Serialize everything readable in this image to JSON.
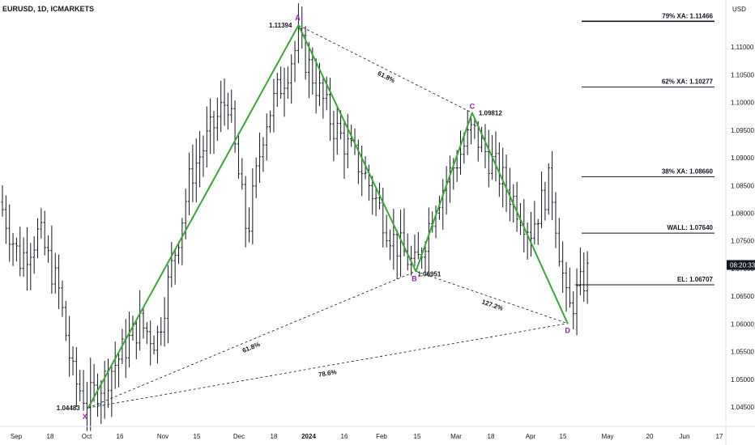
{
  "header": {
    "symbol": "EURUSD, 1D, ICMARKETS",
    "currency": "USD"
  },
  "price_badge": "08:20:33",
  "colors": {
    "pattern": "#3aa835",
    "points": "#8e24aa",
    "ink": "#131722",
    "badge": "#131722"
  },
  "chart_data": {
    "type": "ohlc",
    "title": "EURUSD, 1D, ICMARKETS",
    "ylabel": "USD",
    "ylim": [
      1.0415,
      1.1185
    ],
    "y_ticks": [
      1.045,
      1.05,
      1.055,
      1.06,
      1.065,
      1.07,
      1.075,
      1.08,
      1.085,
      1.09,
      1.095,
      1.1,
      1.105,
      1.11
    ],
    "x_ticks": [
      {
        "label": "Sep",
        "bold": false
      },
      {
        "label": "18",
        "bold": false
      },
      {
        "label": "Oct",
        "bold": false
      },
      {
        "label": "16",
        "bold": false
      },
      {
        "label": "Nov",
        "bold": false
      },
      {
        "label": "15",
        "bold": false
      },
      {
        "label": "Dec",
        "bold": false
      },
      {
        "label": "18",
        "bold": false
      },
      {
        "label": "2024",
        "bold": true
      },
      {
        "label": "16",
        "bold": false
      },
      {
        "label": "Feb",
        "bold": false
      },
      {
        "label": "15",
        "bold": false
      },
      {
        "label": "Mar",
        "bold": false
      },
      {
        "label": "18",
        "bold": false
      },
      {
        "label": "Apr",
        "bold": false
      },
      {
        "label": "15",
        "bold": false
      },
      {
        "label": "May",
        "bold": false
      },
      {
        "label": "20",
        "bold": false
      },
      {
        "label": "Jun",
        "bold": false
      },
      {
        "label": "17",
        "bold": false
      }
    ],
    "pattern_points": [
      {
        "name": "X",
        "date": "2023-10-03",
        "price": 1.04483,
        "label": "1.04483"
      },
      {
        "name": "A",
        "date": "2023-12-28",
        "price": 1.11394,
        "label": "1.11394"
      },
      {
        "name": "B",
        "date": "2024-02-14",
        "price": 1.06951,
        "label": "1.06951"
      },
      {
        "name": "C",
        "date": "2024-03-08",
        "price": 1.09812,
        "label": "1.09812"
      },
      {
        "name": "D",
        "date": "2024-04-16",
        "price": 1.0601,
        "label": ""
      }
    ],
    "ratios": [
      {
        "from": "A",
        "to": "C",
        "text": "61.8%"
      },
      {
        "from": "X",
        "to": "B",
        "text": "61.8%"
      },
      {
        "from": "B",
        "to": "D",
        "text": "127.2%"
      },
      {
        "from": "X",
        "to": "D",
        "text": "78.6%"
      }
    ],
    "levels": [
      {
        "label": "79% XA: 1.11466",
        "price": 1.11466
      },
      {
        "label": "62% XA: 1.10277",
        "price": 1.10277
      },
      {
        "label": "38% XA: 1.08660",
        "price": 1.0866
      },
      {
        "label": "WALL: 1.07640",
        "price": 1.0764
      },
      {
        "label": "EL: 1.06707",
        "price": 1.06707
      }
    ],
    "ohlc_path": [
      [
        "2023-08-28",
        1.082
      ],
      [
        "2023-09-05",
        1.0715
      ],
      [
        "2023-09-13",
        1.0765
      ],
      [
        "2023-09-21",
        1.066
      ],
      [
        "2023-09-27",
        1.05
      ],
      [
        "2023-10-03",
        1.046
      ],
      [
        "2023-10-13",
        1.052
      ],
      [
        "2023-10-24",
        1.06
      ],
      [
        "2023-10-31",
        1.057
      ],
      [
        "2023-11-14",
        1.087
      ],
      [
        "2023-11-29",
        1.101
      ],
      [
        "2023-12-07",
        1.076
      ],
      [
        "2023-12-14",
        1.096
      ],
      [
        "2023-12-28",
        1.111
      ],
      [
        "2024-01-11",
        1.096
      ],
      [
        "2024-01-23",
        1.088
      ],
      [
        "2024-02-05",
        1.075
      ],
      [
        "2024-02-14",
        1.07
      ],
      [
        "2024-02-22",
        1.082
      ],
      [
        "2024-03-08",
        1.095
      ],
      [
        "2024-03-19",
        1.087
      ],
      [
        "2024-04-01",
        1.077
      ],
      [
        "2024-04-09",
        1.086
      ],
      [
        "2024-04-16",
        1.062
      ],
      [
        "2024-04-25",
        1.07
      ]
    ]
  }
}
